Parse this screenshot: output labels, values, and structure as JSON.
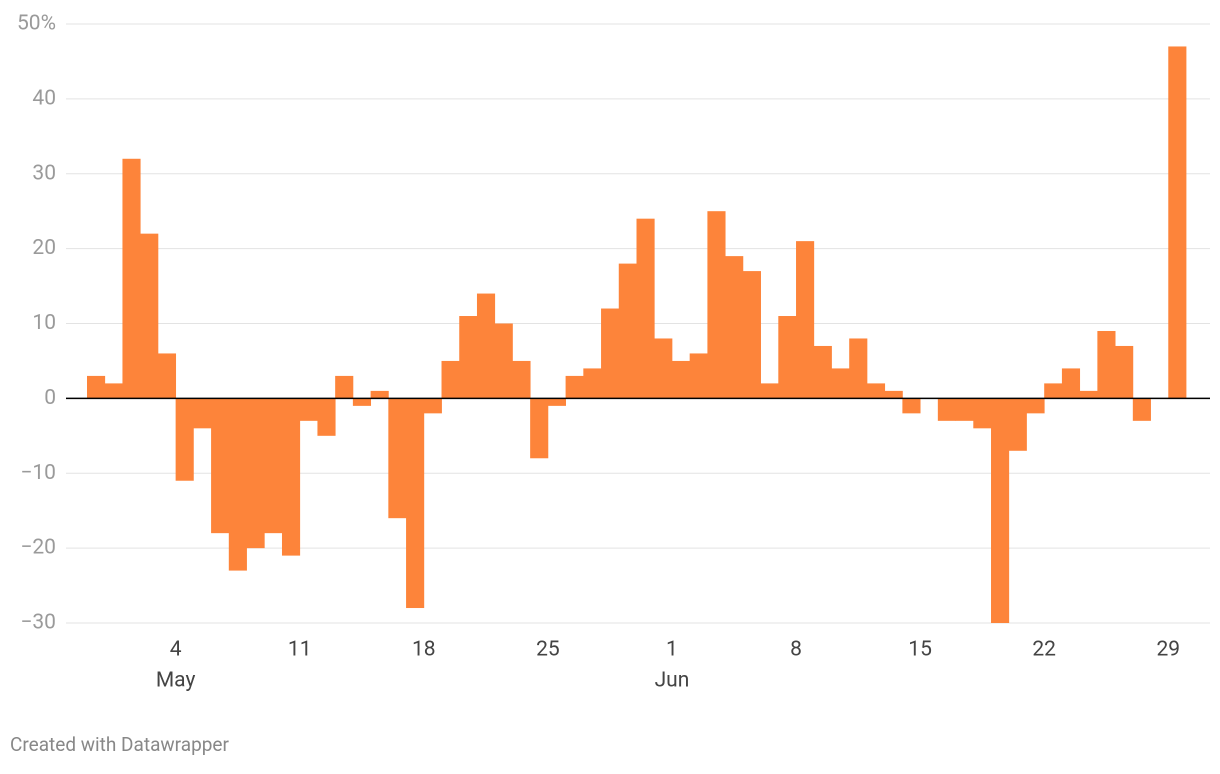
{
  "chart_data": {
    "type": "bar",
    "categories": [
      null,
      null,
      null,
      null,
      null,
      "4",
      null,
      null,
      null,
      null,
      null,
      null,
      "11",
      null,
      null,
      null,
      null,
      null,
      null,
      "18",
      null,
      null,
      null,
      null,
      null,
      null,
      "25",
      null,
      null,
      null,
      null,
      null,
      null,
      "1",
      null,
      null,
      null,
      null,
      null,
      null,
      "8",
      null,
      null,
      null,
      null,
      null,
      null,
      "15",
      null,
      null,
      null,
      null,
      null,
      null,
      "22",
      null,
      null,
      null,
      null,
      null,
      null,
      "29"
    ],
    "category_months": [
      null,
      null,
      null,
      null,
      null,
      "May",
      null,
      null,
      null,
      null,
      null,
      null,
      null,
      null,
      null,
      null,
      null,
      null,
      null,
      null,
      null,
      null,
      null,
      null,
      null,
      null,
      null,
      null,
      null,
      null,
      null,
      null,
      null,
      "Jun",
      null,
      null,
      null,
      null,
      null,
      null,
      null,
      null,
      null,
      null,
      null,
      null,
      null,
      null,
      null,
      null,
      null,
      null,
      null,
      null,
      null,
      null,
      null,
      null,
      null,
      null,
      null,
      null
    ],
    "values": [
      3,
      2,
      32,
      22,
      6,
      -11,
      -4,
      -18,
      -23,
      -20,
      -18,
      -21,
      -3,
      -5,
      3,
      -1,
      1,
      -16,
      -28,
      -2,
      5,
      11,
      14,
      10,
      5,
      -8,
      -1,
      3,
      4,
      12,
      18,
      24,
      8,
      5,
      6,
      25,
      19,
      17,
      2,
      11,
      21,
      7,
      4,
      8,
      2,
      1,
      -2,
      0,
      -3,
      -3,
      -4,
      -30,
      -7,
      -2,
      2,
      4,
      1,
      9,
      7,
      -3,
      0,
      47
    ],
    "color": "#fd843a",
    "ylim": [
      -30,
      50
    ],
    "yticks": [
      {
        "value": -30,
        "label": "−30"
      },
      {
        "value": -20,
        "label": "−20"
      },
      {
        "value": -10,
        "label": "−10"
      },
      0,
      10,
      20,
      30,
      40,
      {
        "value": 50,
        "label": "50%"
      }
    ],
    "grid": true,
    "footer": "Created with Datawrapper"
  }
}
